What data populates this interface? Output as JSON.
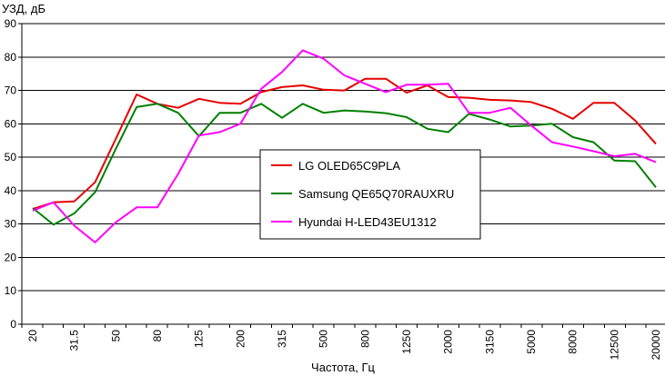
{
  "chart_data": {
    "type": "line",
    "ylabel": "УЗД, дБ",
    "xlabel": "Частота, Гц",
    "ylim": [
      0,
      90
    ],
    "yticks": [
      0,
      10,
      20,
      30,
      40,
      50,
      60,
      70,
      80,
      90
    ],
    "x": [
      "20",
      "25",
      "31.5",
      "40",
      "50",
      "63",
      "80",
      "100",
      "125",
      "160",
      "200",
      "250",
      "315",
      "400",
      "500",
      "630",
      "800",
      "1000",
      "1250",
      "1600",
      "2000",
      "2500",
      "3150",
      "4000",
      "5000",
      "6300",
      "8000",
      "10000",
      "12500",
      "16000",
      "20000"
    ],
    "x_tick_labels": [
      "20",
      "31.5",
      "50",
      "80",
      "125",
      "200",
      "315",
      "500",
      "800",
      "1250",
      "2000",
      "3150",
      "5000",
      "8000",
      "12500",
      "20000"
    ],
    "grid": true,
    "legend_position": "center",
    "series": [
      {
        "name": "LG OLED65C9PLA",
        "color": "#e60000",
        "values": [
          34.5,
          36.5,
          36.8,
          42.5,
          55.5,
          68.8,
          66.0,
          64.8,
          67.5,
          66.3,
          66.0,
          69.5,
          71.0,
          71.5,
          70.2,
          70.0,
          73.5,
          73.5,
          69.3,
          71.5,
          68.0,
          67.8,
          67.2,
          67.0,
          66.5,
          64.5,
          61.5,
          66.3,
          66.3,
          61.0,
          54.0
        ]
      },
      {
        "name": "Samsung QE65Q70RAUXRU",
        "color": "#008000",
        "values": [
          34.8,
          29.8,
          33.2,
          39.5,
          52.5,
          65.0,
          66.0,
          63.3,
          56.3,
          63.3,
          63.3,
          66.0,
          61.8,
          66.0,
          63.3,
          64.0,
          63.7,
          63.2,
          62.0,
          58.5,
          57.5,
          63.0,
          61.3,
          59.2,
          59.5,
          60.0,
          56.0,
          54.5,
          49.0,
          48.8,
          41.0
        ]
      },
      {
        "name": "Hyundai H-LED43EU1312",
        "color": "#ff00ff",
        "values": [
          34.0,
          36.5,
          29.5,
          24.5,
          30.5,
          35.0,
          35.0,
          45.0,
          56.5,
          57.5,
          60.0,
          70.5,
          75.5,
          82.0,
          79.5,
          74.5,
          72.0,
          69.5,
          71.7,
          71.7,
          72.0,
          63.3,
          63.3,
          64.8,
          59.5,
          54.5,
          53.2,
          51.8,
          50.3,
          51.0,
          48.5
        ]
      }
    ]
  }
}
